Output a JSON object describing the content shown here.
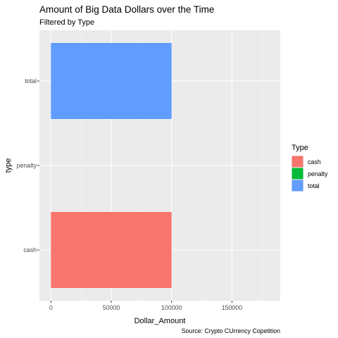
{
  "chart_data": {
    "type": "bar",
    "orientation": "horizontal",
    "title": "Amount of Big Data Dollars over the Time",
    "subtitle": "Filtered by Type",
    "caption": "Source: Crypto CUrrency Copetition",
    "xlabel": "Dollar_Amount",
    "ylabel": "type",
    "categories": [
      "cash",
      "penalty",
      "total"
    ],
    "values": [
      100000,
      0,
      100000
    ],
    "colors": [
      "#F8766D",
      "#00BA38",
      "#619CFF"
    ],
    "xlim": [
      -9500,
      190000
    ],
    "x_ticks": [
      0,
      50000,
      100000,
      150000
    ],
    "x_tick_labels": [
      "0",
      "50000",
      "100000",
      "150000"
    ],
    "grid": true,
    "legend": {
      "title": "Type",
      "position": "right",
      "entries": [
        "cash",
        "penalty",
        "total"
      ]
    }
  }
}
